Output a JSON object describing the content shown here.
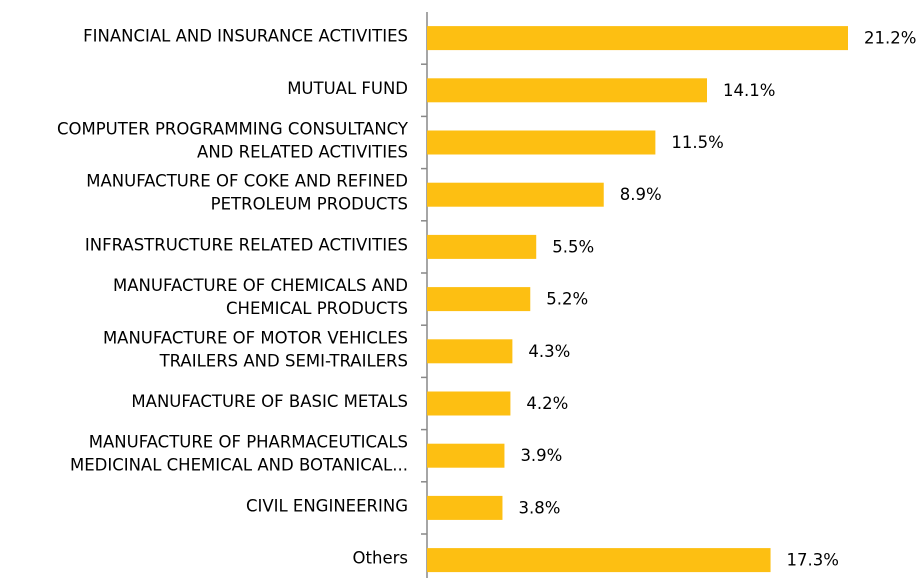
{
  "chart_data": {
    "type": "bar",
    "orientation": "horizontal",
    "color": "#fdbf12",
    "categories": [
      [
        "FINANCIAL AND INSURANCE ACTIVITIES"
      ],
      [
        "MUTUAL FUND"
      ],
      [
        "COMPUTER PROGRAMMING CONSULTANCY",
        "AND RELATED ACTIVITIES"
      ],
      [
        "MANUFACTURE OF COKE AND REFINED",
        "PETROLEUM PRODUCTS"
      ],
      [
        "INFRASTRUCTURE RELATED ACTIVITIES"
      ],
      [
        "MANUFACTURE OF CHEMICALS AND",
        "CHEMICAL PRODUCTS"
      ],
      [
        "MANUFACTURE OF MOTOR VEHICLES",
        "TRAILERS AND SEMI-TRAILERS"
      ],
      [
        "MANUFACTURE OF BASIC METALS"
      ],
      [
        "MANUFACTURE OF PHARMACEUTICALS",
        "MEDICINAL CHEMICAL AND BOTANICAL..."
      ],
      [
        "CIVIL ENGINEERING"
      ],
      [
        "Others"
      ]
    ],
    "values": [
      21.2,
      14.1,
      11.5,
      8.9,
      5.5,
      5.2,
      4.3,
      4.2,
      3.9,
      3.8,
      17.3
    ],
    "value_labels": [
      "21.2%",
      "14.1%",
      "11.5%",
      "8.9%",
      "5.5%",
      "5.2%",
      "4.3%",
      "4.2%",
      "3.9%",
      "3.8%",
      "17.3%"
    ]
  }
}
